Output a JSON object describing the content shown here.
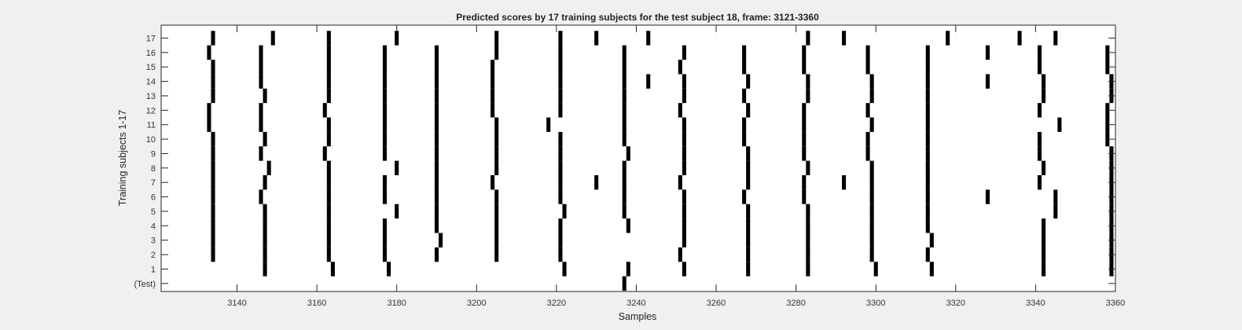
{
  "chart_data": {
    "type": "raster",
    "title": "Predicted scores by 17 training subjects for the test subject 18, frame: 3121-3360",
    "xlabel": "Samples",
    "ylabel": "Training subjects 1-17",
    "xlim": [
      3121,
      3360
    ],
    "x_ticks": [
      "3140",
      "3160",
      "3180",
      "3200",
      "3220",
      "3240",
      "3260",
      "3280",
      "3300",
      "3320",
      "3340",
      "3360"
    ],
    "rows": [
      {
        "label": "(Test)",
        "events": [
          3237
        ]
      },
      {
        "label": "1",
        "events": [
          3147,
          3164,
          3178,
          3222,
          3238,
          3252,
          3268,
          3283,
          3300,
          3314,
          3342,
          3359
        ]
      },
      {
        "label": "2",
        "events": [
          3134,
          3147,
          3163,
          3177,
          3190,
          3205,
          3221,
          3251,
          3268,
          3283,
          3299,
          3313,
          3342,
          3359
        ]
      },
      {
        "label": "3",
        "events": [
          3134,
          3147,
          3163,
          3177,
          3191,
          3205,
          3221,
          3252,
          3268,
          3283,
          3299,
          3314,
          3342,
          3359
        ]
      },
      {
        "label": "4",
        "events": [
          3134,
          3147,
          3163,
          3177,
          3190,
          3205,
          3221,
          3238,
          3252,
          3268,
          3283,
          3299,
          3313,
          3342,
          3359
        ]
      },
      {
        "label": "5",
        "events": [
          3134,
          3147,
          3163,
          3180,
          3190,
          3205,
          3222,
          3237,
          3252,
          3268,
          3283,
          3299,
          3313,
          3345,
          3359
        ]
      },
      {
        "label": "6",
        "events": [
          3134,
          3146,
          3163,
          3177,
          3190,
          3205,
          3221,
          3237,
          3252,
          3267,
          3282,
          3299,
          3313,
          3328,
          3345,
          3359
        ]
      },
      {
        "label": "7",
        "events": [
          3134,
          3147,
          3163,
          3177,
          3190,
          3204,
          3221,
          3230,
          3237,
          3251,
          3268,
          3282,
          3292,
          3299,
          3313,
          3341,
          3359
        ]
      },
      {
        "label": "8",
        "events": [
          3134,
          3148,
          3163,
          3180,
          3190,
          3205,
          3221,
          3237,
          3252,
          3268,
          3283,
          3299,
          3313,
          3342,
          3359
        ]
      },
      {
        "label": "9",
        "events": [
          3134,
          3146,
          3162,
          3177,
          3190,
          3205,
          3221,
          3238,
          3252,
          3268,
          3282,
          3298,
          3313,
          3341,
          3359
        ]
      },
      {
        "label": "10",
        "events": [
          3134,
          3147,
          3163,
          3177,
          3190,
          3205,
          3221,
          3237,
          3252,
          3267,
          3282,
          3298,
          3313,
          3341,
          3358
        ]
      },
      {
        "label": "11",
        "events": [
          3133,
          3146,
          3163,
          3177,
          3190,
          3205,
          3218,
          3237,
          3252,
          3267,
          3282,
          3299,
          3313,
          3346,
          3358
        ]
      },
      {
        "label": "12",
        "events": [
          3133,
          3146,
          3162,
          3177,
          3190,
          3204,
          3221,
          3237,
          3251,
          3268,
          3282,
          3298,
          3313,
          3341,
          3358
        ]
      },
      {
        "label": "13",
        "events": [
          3134,
          3147,
          3163,
          3177,
          3190,
          3204,
          3221,
          3237,
          3252,
          3267,
          3283,
          3299,
          3313,
          3342,
          3359
        ]
      },
      {
        "label": "14",
        "events": [
          3134,
          3146,
          3163,
          3177,
          3190,
          3204,
          3221,
          3237,
          3243,
          3252,
          3268,
          3283,
          3299,
          3313,
          3328,
          3342,
          3359
        ]
      },
      {
        "label": "15",
        "events": [
          3134,
          3146,
          3163,
          3177,
          3190,
          3204,
          3221,
          3237,
          3251,
          3267,
          3282,
          3298,
          3313,
          3341,
          3358
        ]
      },
      {
        "label": "16",
        "events": [
          3133,
          3146,
          3163,
          3177,
          3190,
          3205,
          3221,
          3237,
          3252,
          3267,
          3282,
          3298,
          3313,
          3328,
          3341,
          3358
        ]
      },
      {
        "label": "17",
        "events": [
          3134,
          3149,
          3163,
          3180,
          3205,
          3221,
          3230,
          3243,
          3283,
          3292,
          3318,
          3336,
          3345
        ]
      }
    ],
    "grid": false,
    "colors": {
      "mark": "#000000",
      "plot_bg": "#ffffff",
      "figure_bg": "#f0f0f0"
    }
  }
}
